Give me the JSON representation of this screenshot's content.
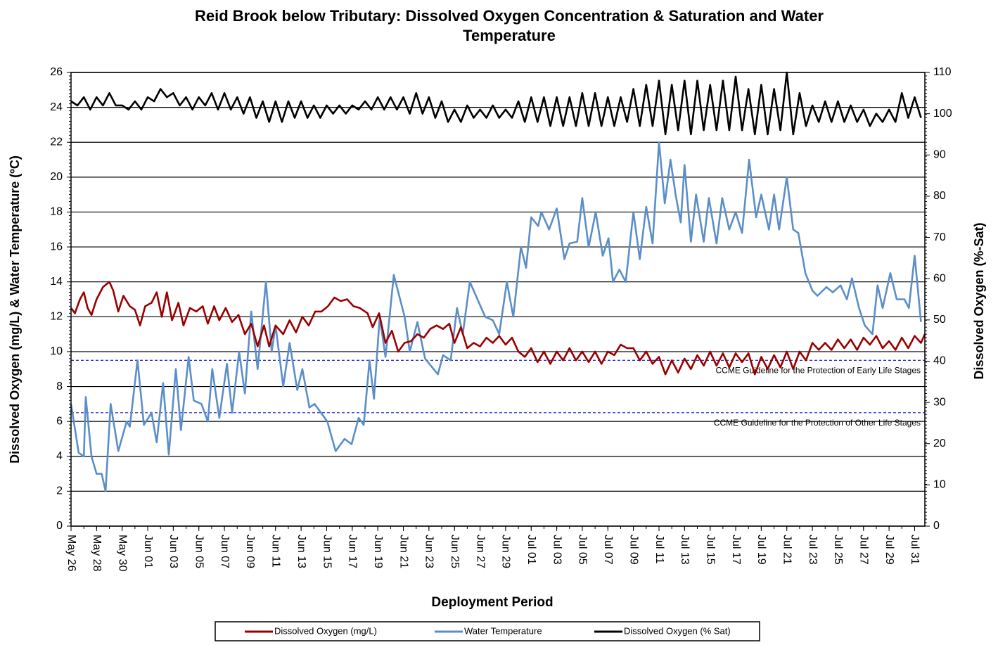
{
  "chart_data": {
    "type": "line",
    "title": "Reid Brook below Tributary: Dissolved Oxygen Concentration & Saturation and Water Temperature",
    "x_label": "Deployment Period",
    "y_label": "Dissolved  Oxygen (mg/L) & Water Temperature (ºC)",
    "y2_label": "Dissolved  Oxygen (%-Sat)",
    "xlim": [
      0,
      66.8
    ],
    "xticks": [
      {
        "value": 0,
        "label": "May 26"
      },
      {
        "value": 2,
        "label": "May 28"
      },
      {
        "value": 4,
        "label": "May 30"
      },
      {
        "value": 6,
        "label": "Jun 01"
      },
      {
        "value": 8,
        "label": "Jun 03"
      },
      {
        "value": 10,
        "label": "Jun 05"
      },
      {
        "value": 12,
        "label": "Jun 07"
      },
      {
        "value": 14,
        "label": "Jun 09"
      },
      {
        "value": 16,
        "label": "Jun 11"
      },
      {
        "value": 18,
        "label": "Jun 13"
      },
      {
        "value": 20,
        "label": "Jun 15"
      },
      {
        "value": 22,
        "label": "Jun 17"
      },
      {
        "value": 24,
        "label": "Jun 19"
      },
      {
        "value": 26,
        "label": "Jun 21"
      },
      {
        "value": 28,
        "label": "Jun 23"
      },
      {
        "value": 30,
        "label": "Jun 25"
      },
      {
        "value": 32,
        "label": "Jun 27"
      },
      {
        "value": 34,
        "label": "Jun 29"
      },
      {
        "value": 36,
        "label": "Jul 01"
      },
      {
        "value": 38,
        "label": "Jul 03"
      },
      {
        "value": 40,
        "label": "Jul 05"
      },
      {
        "value": 42,
        "label": "Jul 07"
      },
      {
        "value": 44,
        "label": "Jul 09"
      },
      {
        "value": 46,
        "label": "Jul 11"
      },
      {
        "value": 48,
        "label": "Jul 13"
      },
      {
        "value": 50,
        "label": "Jul 15"
      },
      {
        "value": 52,
        "label": "Jul 17"
      },
      {
        "value": 54,
        "label": "Jul 19"
      },
      {
        "value": 56,
        "label": "Jul 21"
      },
      {
        "value": 58,
        "label": "Jul 23"
      },
      {
        "value": 60,
        "label": "Jul 25"
      },
      {
        "value": 62,
        "label": "Jul 27"
      },
      {
        "value": 64,
        "label": "Jul 29"
      },
      {
        "value": 66,
        "label": "Jul 31"
      }
    ],
    "ylim": [
      0,
      26
    ],
    "yticks": [
      0,
      2,
      4,
      6,
      8,
      10,
      12,
      14,
      16,
      18,
      20,
      22,
      24,
      26
    ],
    "y2lim": [
      0,
      110
    ],
    "y2ticks": [
      0,
      10,
      20,
      30,
      40,
      50,
      60,
      70,
      80,
      90,
      100,
      110
    ],
    "grid": true,
    "reference_lines": [
      {
        "value": 9.5,
        "label": "CCME Guideline  for the Protection of Early Life Stages",
        "color": "#3333cc"
      },
      {
        "value": 6.5,
        "label": "CCME Guideline  for the Protection of Other Life Stages",
        "color": "#3333cc"
      }
    ],
    "series": [
      {
        "name": "Dissolved Oxygen (mg/L)",
        "color": "#990000",
        "axis": "y",
        "x": [
          0,
          0.3,
          0.7,
          1,
          1.3,
          1.6,
          2,
          2.5,
          3,
          3.3,
          3.7,
          4.1,
          4.6,
          5,
          5.4,
          5.8,
          6.3,
          6.7,
          7.1,
          7.5,
          7.9,
          8.4,
          8.8,
          9.3,
          9.8,
          10.3,
          10.7,
          11.2,
          11.6,
          12.1,
          12.6,
          13.1,
          13.6,
          14.1,
          14.6,
          15.1,
          15.5,
          16,
          16.6,
          17.1,
          17.6,
          18.1,
          18.6,
          19.1,
          19.6,
          20.1,
          20.6,
          21.1,
          21.6,
          22.1,
          22.6,
          23.2,
          23.6,
          24.1,
          24.6,
          25.1,
          25.6,
          26.1,
          26.6,
          27.1,
          27.6,
          28.1,
          28.6,
          29.1,
          29.6,
          30,
          30.5,
          31,
          31.5,
          32,
          32.5,
          33,
          33.5,
          34,
          34.5,
          35,
          35.5,
          36,
          36.5,
          37,
          37.5,
          38,
          38.5,
          39,
          39.5,
          40,
          40.5,
          41,
          41.5,
          42,
          42.5,
          43,
          43.5,
          44,
          44.5,
          45,
          45.5,
          46,
          46.5,
          47,
          47.5,
          48,
          48.5,
          49,
          49.5,
          50,
          50.5,
          51,
          51.5,
          52,
          52.5,
          53,
          53.5,
          54,
          54.5,
          55,
          55.5,
          56,
          56.5,
          57,
          57.5,
          58,
          58.5,
          59,
          59.5,
          60,
          60.5,
          61,
          61.5,
          62,
          62.5,
          63,
          63.5,
          64,
          64.5,
          65,
          65.5,
          66,
          66.5,
          66.8
        ],
        "values": [
          12.5,
          12.2,
          13,
          13.4,
          12.5,
          12.1,
          13,
          13.7,
          14,
          13.5,
          12.3,
          13.2,
          12.6,
          12.4,
          11.5,
          12.6,
          12.8,
          13.4,
          12,
          13.4,
          11.8,
          12.8,
          11.5,
          12.5,
          12.3,
          12.6,
          11.6,
          12.6,
          11.8,
          12.5,
          11.7,
          12.1,
          11,
          11.6,
          10.3,
          11.5,
          10.3,
          11.5,
          11,
          11.8,
          11.1,
          12,
          11.5,
          12.3,
          12.3,
          12.6,
          13.1,
          12.9,
          13,
          12.6,
          12.5,
          12.2,
          11.4,
          12.2,
          10.5,
          11.2,
          10,
          10.5,
          10.6,
          11,
          10.8,
          11.3,
          11.5,
          11.3,
          11.6,
          10.5,
          11.4,
          10.2,
          10.5,
          10.3,
          10.8,
          10.5,
          10.9,
          10.4,
          10.8,
          10,
          9.7,
          10.2,
          9.4,
          10,
          9.3,
          10,
          9.5,
          10.2,
          9.5,
          10,
          9.4,
          10,
          9.3,
          10,
          9.8,
          10.4,
          10.2,
          10.2,
          9.5,
          10,
          9.3,
          9.7,
          8.7,
          9.5,
          8.8,
          9.6,
          9,
          9.8,
          9.2,
          10,
          9.2,
          9.9,
          9.1,
          9.9,
          9.4,
          9.9,
          8.7,
          9.7,
          9,
          9.8,
          9.1,
          10,
          9,
          10,
          9.5,
          10.5,
          10.1,
          10.5,
          10.1,
          10.7,
          10.2,
          10.7,
          10.1,
          10.8,
          10.4,
          10.9,
          10.2,
          10.6,
          10.1,
          10.8,
          10.2,
          10.9,
          10.5,
          11
        ]
      },
      {
        "name": "Water Temperature",
        "color": "#5b8ec9",
        "axis": "y",
        "x": [
          0,
          0.6,
          1,
          1.15,
          1.6,
          2,
          2.4,
          2.7,
          3.1,
          3.7,
          4.35,
          4.6,
          5.2,
          5.7,
          6.3,
          6.7,
          7.2,
          7.65,
          8.2,
          8.6,
          9.2,
          9.6,
          10.2,
          10.7,
          11.05,
          11.6,
          12.2,
          12.6,
          13.15,
          13.6,
          14.1,
          14.6,
          15.25,
          15.7,
          16,
          16.6,
          17.1,
          17.7,
          18.1,
          18.65,
          19.05,
          20.05,
          20.7,
          21.4,
          21.95,
          22.5,
          22.9,
          23.35,
          23.7,
          24.15,
          24.6,
          25.25,
          26.1,
          26.5,
          27.1,
          27.7,
          28.7,
          29.1,
          29.7,
          30.2,
          30.65,
          31.2,
          32.4,
          33,
          33.5,
          34.1,
          34.6,
          35.2,
          35.6,
          36,
          36.55,
          36.8,
          37.4,
          38,
          38.6,
          39,
          39.6,
          40,
          40.5,
          41.05,
          41.6,
          42.05,
          42.4,
          42.9,
          43.4,
          44,
          44.5,
          45,
          45.5,
          46,
          46.45,
          46.9,
          47.3,
          47.7,
          48,
          48.5,
          48.9,
          49.5,
          49.9,
          50.5,
          50.95,
          51.5,
          52,
          52.5,
          53.05,
          53.6,
          54,
          54.6,
          55,
          55.4,
          56,
          56.5,
          56.9,
          57.45,
          58,
          58.4,
          59.1,
          59.6,
          60.2,
          60.7,
          61.1,
          61.65,
          62.1,
          62.7,
          63.1,
          63.5,
          64.1,
          64.6,
          65.2,
          65.55,
          66,
          66.5
        ],
        "values": [
          7,
          4.2,
          4,
          7.4,
          4,
          3,
          3,
          2,
          7,
          4.3,
          6,
          5.7,
          9.5,
          5.8,
          6.5,
          4.8,
          8.2,
          4.1,
          9,
          5.5,
          9.7,
          7.2,
          7,
          6,
          9,
          6.2,
          9.3,
          6.5,
          10,
          7.6,
          12.3,
          9,
          14,
          10,
          11.5,
          8,
          10.5,
          7.8,
          9,
          6.8,
          7,
          6,
          4.3,
          5,
          4.7,
          6.2,
          5.8,
          9.5,
          7.3,
          12,
          9.7,
          14.4,
          12,
          10,
          11.7,
          9.6,
          8.7,
          9.8,
          9.5,
          12.5,
          11,
          14,
          12,
          11.8,
          11,
          14,
          12,
          16,
          14.8,
          17.7,
          17.2,
          18,
          17,
          18.2,
          15.3,
          16.2,
          16.3,
          18.8,
          16,
          18,
          15.5,
          16.5,
          14,
          14.7,
          14,
          18,
          15.3,
          18.3,
          16.2,
          22,
          18.5,
          21,
          19,
          17.4,
          20.7,
          16.3,
          19,
          16.3,
          18.8,
          16.2,
          18.8,
          17,
          18,
          16.8,
          21,
          17.7,
          19,
          17,
          19,
          17,
          20,
          17,
          16.8,
          14.5,
          13.5,
          13.2,
          13.7,
          13.4,
          13.8,
          13,
          14.2,
          12.5,
          11.5,
          11,
          13.8,
          12.5,
          14.5,
          13,
          13,
          12.5,
          15.5,
          11.7
        ]
      },
      {
        "name": "Dissolved Oxygen (% Sat)",
        "color": "#000000",
        "axis": "y2",
        "x": [
          0,
          0.5,
          1,
          1.5,
          2,
          2.5,
          3,
          3.5,
          4,
          4.5,
          5,
          5.5,
          6,
          6.5,
          7,
          7.5,
          8,
          8.5,
          9,
          9.5,
          10,
          10.5,
          11,
          11.5,
          12,
          12.5,
          13,
          13.5,
          14,
          14.5,
          15,
          15.5,
          16,
          16.5,
          17,
          17.5,
          18,
          18.5,
          19,
          19.5,
          20,
          20.5,
          21,
          21.5,
          22,
          22.5,
          23,
          23.5,
          24,
          24.5,
          25,
          25.5,
          26,
          26.5,
          27,
          27.5,
          28,
          28.5,
          29,
          29.5,
          30,
          30.5,
          31,
          31.5,
          32,
          32.5,
          33,
          33.5,
          34,
          34.5,
          35,
          35.5,
          36,
          36.5,
          37,
          37.5,
          38,
          38.5,
          39,
          39.5,
          40,
          40.5,
          41,
          41.5,
          42,
          42.5,
          43,
          43.5,
          44,
          44.5,
          45,
          45.5,
          46,
          46.5,
          47,
          47.5,
          48,
          48.5,
          49,
          49.5,
          50,
          50.5,
          51,
          51.5,
          52,
          52.5,
          53,
          53.5,
          54,
          54.5,
          55,
          55.5,
          56,
          56.5,
          57,
          57.5,
          58,
          58.5,
          59,
          59.5,
          60,
          60.5,
          61,
          61.5,
          62,
          62.5,
          63,
          63.5,
          64,
          64.5,
          65,
          65.5,
          66,
          66.5
        ],
        "values": [
          103,
          102,
          104,
          101,
          104,
          102,
          105,
          102,
          102,
          101,
          103,
          101,
          104,
          103,
          106,
          104,
          105,
          102,
          104,
          101,
          104,
          102,
          105,
          101,
          105,
          101,
          104,
          100,
          104,
          99,
          103,
          98,
          103,
          98,
          103,
          99,
          103,
          99,
          102,
          99,
          102,
          100,
          102,
          100,
          102,
          101,
          103,
          101,
          104,
          101,
          104,
          101,
          104,
          100,
          105,
          100,
          104,
          99,
          103,
          98,
          101,
          98,
          102,
          99,
          101,
          99,
          102,
          99,
          101,
          99,
          103,
          98,
          104,
          98,
          104,
          97,
          104,
          97,
          104,
          97,
          105,
          97,
          105,
          97,
          104,
          97,
          104,
          98,
          106,
          97,
          107,
          97,
          108,
          95,
          107,
          96,
          108,
          95,
          108,
          96,
          107,
          96,
          108,
          96,
          109,
          96,
          106,
          95,
          107,
          95,
          106,
          96,
          110,
          95,
          105,
          97,
          102,
          98,
          103,
          98,
          103,
          98,
          102,
          98,
          101,
          97,
          100,
          98,
          101,
          98,
          105,
          99,
          104,
          99
        ]
      }
    ]
  }
}
